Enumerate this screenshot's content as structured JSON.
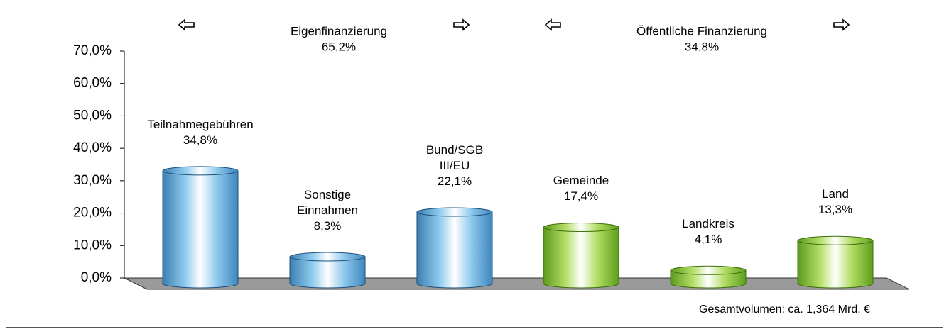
{
  "chart_data": {
    "type": "bar",
    "categories": [
      "Teilnahmegebühren",
      "Sonstige Einnahmen",
      "Bund/SGB III/EU",
      "Gemeinde",
      "Landkreis",
      "Land"
    ],
    "values": [
      34.8,
      8.3,
      22.1,
      17.4,
      4.1,
      13.3
    ],
    "value_labels": [
      "34,8%",
      "8,3%",
      "22,1%",
      "17,4%",
      "4,1%",
      "13,3%"
    ],
    "colors": [
      "blue",
      "blue",
      "blue",
      "green",
      "green",
      "green"
    ],
    "ylim": [
      0,
      70
    ],
    "yticks": [
      {
        "value": 0,
        "label": "0,0%"
      },
      {
        "value": 10,
        "label": "10,0%"
      },
      {
        "value": 20,
        "label": "20,0%"
      },
      {
        "value": 30,
        "label": "30,0%"
      },
      {
        "value": 40,
        "label": "40,0%"
      },
      {
        "value": 50,
        "label": "50,0%"
      },
      {
        "value": 60,
        "label": "60,0%"
      },
      {
        "value": 70,
        "label": "70,0%"
      }
    ],
    "annotations": [
      "Eigenfinanzierung",
      "65,2%",
      "Öffentliche Finanzierung",
      "34,8%",
      "Gesamtvolumen: ca. 1,364 Mrd. €"
    ]
  }
}
